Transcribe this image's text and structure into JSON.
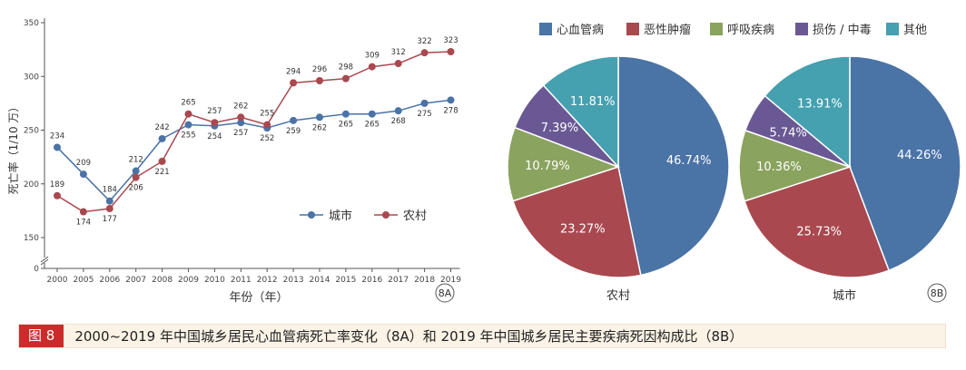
{
  "colors": {
    "city": "#4a73a6",
    "rural": "#a9484f",
    "axis": "#555555",
    "grid": "#dddddd",
    "caption_bg": "#fbf3e6",
    "fig_label_bg": "#cc2b2b"
  },
  "chart_data": [
    {
      "type": "line",
      "x": [
        "2000",
        "2005",
        "2006",
        "2007",
        "2008",
        "2009",
        "2010",
        "2011",
        "2012",
        "2013",
        "2014",
        "2015",
        "2016",
        "2017",
        "2018",
        "2019"
      ],
      "ylabel": "死亡率（1/10 万）",
      "xlabel": "年份（年）",
      "yticks": [
        0,
        150,
        200,
        250,
        300,
        350
      ],
      "ylim": [
        150,
        350
      ],
      "axis_break": true,
      "legend_position": "center-right",
      "series": [
        {
          "name": "城市",
          "color": "#4a73a6",
          "values": [
            234,
            209,
            184,
            212,
            242,
            255,
            254,
            257,
            252,
            259,
            262,
            265,
            265,
            268,
            275,
            278
          ]
        },
        {
          "name": "农村",
          "color": "#a9484f",
          "values": [
            189,
            174,
            177,
            206,
            221,
            265,
            257,
            262,
            255,
            294,
            296,
            298,
            309,
            312,
            322,
            323
          ]
        }
      ],
      "badge": "8A"
    },
    {
      "type": "pie",
      "legend": [
        {
          "label": "心血管病",
          "color": "#4a73a6"
        },
        {
          "label": "恶性肿瘤",
          "color": "#a9484f"
        },
        {
          "label": "呼吸疾病",
          "color": "#8aa35e"
        },
        {
          "label": "损伤 / 中毒",
          "color": "#6a5894"
        },
        {
          "label": "其他",
          "color": "#45a0b0"
        }
      ],
      "legend_position": "top",
      "badge": "8B",
      "pies": [
        {
          "title": "农村",
          "slices": [
            {
              "label": "心血管病",
              "value": 46.74,
              "text": "46.74%"
            },
            {
              "label": "恶性肿瘤",
              "value": 23.27,
              "text": "23.27%"
            },
            {
              "label": "呼吸疾病",
              "value": 10.79,
              "text": "10.79%"
            },
            {
              "label": "损伤 / 中毒",
              "value": 7.39,
              "text": "7.39%"
            },
            {
              "label": "其他",
              "value": 11.81,
              "text": "11.81%"
            }
          ]
        },
        {
          "title": "城市",
          "slices": [
            {
              "label": "心血管病",
              "value": 44.26,
              "text": "44.26%"
            },
            {
              "label": "恶性肿瘤",
              "value": 25.73,
              "text": "25.73%"
            },
            {
              "label": "呼吸疾病",
              "value": 10.36,
              "text": "10.36%"
            },
            {
              "label": "损伤 / 中毒",
              "value": 5.74,
              "text": "5.74%"
            },
            {
              "label": "其他",
              "value": 13.91,
              "text": "13.91%"
            }
          ]
        }
      ]
    }
  ],
  "caption": {
    "label": "图 8",
    "text": "2000~2019 年中国城乡居民心血管病死亡率变化（8A）和 2019 年中国城乡居民主要疾病死因构成比（8B）"
  }
}
